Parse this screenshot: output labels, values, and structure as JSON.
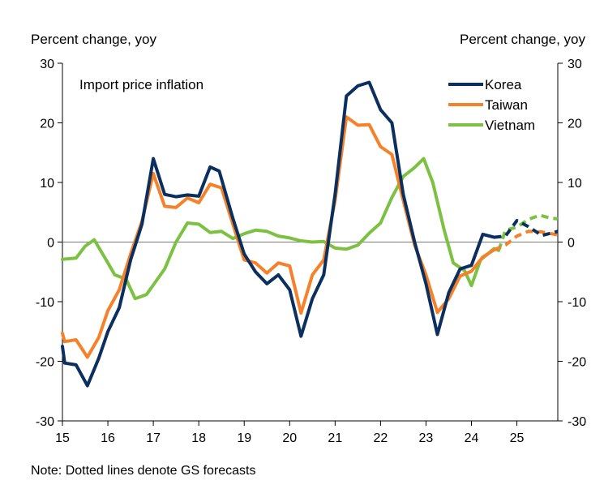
{
  "chart_data": {
    "type": "line",
    "title": "Import price inflation",
    "ylabel_left": "Percent change, yoy",
    "ylabel_right": "Percent change, yoy",
    "note": "Note: Dotted lines denote GS forecasts",
    "x_ticks": [
      "15",
      "16",
      "17",
      "18",
      "19",
      "20",
      "21",
      "22",
      "23",
      "24",
      "25"
    ],
    "y_ticks": [
      30,
      20,
      10,
      0,
      -10,
      -20,
      -30
    ],
    "ylim": [
      -30,
      30
    ],
    "xlim": [
      2015.0,
      2025.9
    ],
    "legend_position": "top-right",
    "grid": false,
    "colors": {
      "Korea": "#0b2f5e",
      "Taiwan": "#f5822a",
      "Vietnam": "#7cc142"
    },
    "series": [
      {
        "name": "Korea",
        "points": [
          [
            2015.0,
            -17.5
          ],
          [
            2015.05,
            -20.3
          ],
          [
            2015.3,
            -20.6
          ],
          [
            2015.55,
            -24.1
          ],
          [
            2015.8,
            -19.5
          ],
          [
            2016.0,
            -15.0
          ],
          [
            2016.25,
            -11.0
          ],
          [
            2016.5,
            -3.0
          ],
          [
            2016.75,
            3.0
          ],
          [
            2017.0,
            14.0
          ],
          [
            2017.25,
            8.0
          ],
          [
            2017.5,
            7.6
          ],
          [
            2017.75,
            7.9
          ],
          [
            2018.0,
            7.7
          ],
          [
            2018.25,
            12.6
          ],
          [
            2018.45,
            11.9
          ],
          [
            2018.75,
            4.0
          ],
          [
            2019.0,
            -2.0
          ],
          [
            2019.25,
            -5.0
          ],
          [
            2019.5,
            -7.0
          ],
          [
            2019.75,
            -5.5
          ],
          [
            2020.0,
            -8.0
          ],
          [
            2020.25,
            -15.8
          ],
          [
            2020.5,
            -9.5
          ],
          [
            2020.75,
            -5.5
          ],
          [
            2021.0,
            8.0
          ],
          [
            2021.25,
            24.5
          ],
          [
            2021.5,
            26.2
          ],
          [
            2021.75,
            26.8
          ],
          [
            2022.0,
            22.2
          ],
          [
            2022.25,
            20.0
          ],
          [
            2022.5,
            8.0
          ],
          [
            2022.75,
            0.0
          ],
          [
            2023.0,
            -7.0
          ],
          [
            2023.25,
            -15.5
          ],
          [
            2023.5,
            -8.5
          ],
          [
            2023.75,
            -4.5
          ],
          [
            2024.0,
            -3.9
          ],
          [
            2024.25,
            1.3
          ],
          [
            2024.5,
            0.8
          ]
        ],
        "forecast": [
          [
            2024.5,
            0.8
          ],
          [
            2024.75,
            1.0
          ],
          [
            2025.0,
            3.6
          ],
          [
            2025.25,
            2.6
          ],
          [
            2025.55,
            1.1
          ],
          [
            2025.9,
            1.8
          ]
        ]
      },
      {
        "name": "Taiwan",
        "points": [
          [
            2015.0,
            -15.3
          ],
          [
            2015.05,
            -16.7
          ],
          [
            2015.3,
            -16.4
          ],
          [
            2015.55,
            -19.3
          ],
          [
            2015.8,
            -16.0
          ],
          [
            2016.0,
            -11.5
          ],
          [
            2016.25,
            -8.0
          ],
          [
            2016.5,
            -2.0
          ],
          [
            2016.75,
            3.5
          ],
          [
            2017.0,
            11.5
          ],
          [
            2017.25,
            6.0
          ],
          [
            2017.5,
            5.8
          ],
          [
            2017.75,
            7.4
          ],
          [
            2018.0,
            6.6
          ],
          [
            2018.25,
            9.7
          ],
          [
            2018.5,
            9.1
          ],
          [
            2018.75,
            3.0
          ],
          [
            2019.0,
            -3.0
          ],
          [
            2019.25,
            -3.5
          ],
          [
            2019.5,
            -5.2
          ],
          [
            2019.75,
            -3.5
          ],
          [
            2020.0,
            -4.0
          ],
          [
            2020.25,
            -11.9
          ],
          [
            2020.5,
            -5.5
          ],
          [
            2020.75,
            -3.0
          ],
          [
            2021.0,
            7.0
          ],
          [
            2021.25,
            21.0
          ],
          [
            2021.5,
            19.6
          ],
          [
            2021.75,
            19.7
          ],
          [
            2022.0,
            16.0
          ],
          [
            2022.25,
            14.7
          ],
          [
            2022.5,
            7.0
          ],
          [
            2022.75,
            -0.5
          ],
          [
            2023.0,
            -5.5
          ],
          [
            2023.25,
            -11.8
          ],
          [
            2023.5,
            -9.5
          ],
          [
            2023.75,
            -5.7
          ],
          [
            2024.0,
            -4.9
          ],
          [
            2024.25,
            -2.5
          ],
          [
            2024.5,
            -1.3
          ]
        ],
        "forecast": [
          [
            2024.5,
            -1.3
          ],
          [
            2024.75,
            -0.5
          ],
          [
            2025.0,
            1.0
          ],
          [
            2025.25,
            1.8
          ],
          [
            2025.55,
            1.7
          ],
          [
            2025.9,
            1.2
          ]
        ]
      },
      {
        "name": "Vietnam",
        "points": [
          [
            2015.0,
            -2.9
          ],
          [
            2015.3,
            -2.7
          ],
          [
            2015.5,
            -0.7
          ],
          [
            2015.7,
            0.4
          ],
          [
            2016.0,
            -3.5
          ],
          [
            2016.15,
            -5.5
          ],
          [
            2016.4,
            -6.2
          ],
          [
            2016.6,
            -9.5
          ],
          [
            2016.85,
            -8.8
          ],
          [
            2017.0,
            -7.2
          ],
          [
            2017.25,
            -4.5
          ],
          [
            2017.5,
            0.0
          ],
          [
            2017.75,
            3.2
          ],
          [
            2018.0,
            3.0
          ],
          [
            2018.25,
            1.6
          ],
          [
            2018.5,
            1.8
          ],
          [
            2018.75,
            0.6
          ],
          [
            2019.0,
            1.4
          ],
          [
            2019.25,
            2.0
          ],
          [
            2019.5,
            1.8
          ],
          [
            2019.75,
            1.0
          ],
          [
            2020.0,
            0.7
          ],
          [
            2020.25,
            0.2
          ],
          [
            2020.5,
            0.0
          ],
          [
            2020.75,
            0.1
          ],
          [
            2021.0,
            -1.0
          ],
          [
            2021.25,
            -1.2
          ],
          [
            2021.5,
            -0.5
          ],
          [
            2021.75,
            1.5
          ],
          [
            2022.0,
            3.2
          ],
          [
            2022.25,
            7.5
          ],
          [
            2022.5,
            11.0
          ],
          [
            2022.75,
            12.5
          ],
          [
            2022.95,
            14.0
          ],
          [
            2023.15,
            10.0
          ],
          [
            2023.4,
            2.0
          ],
          [
            2023.6,
            -3.5
          ],
          [
            2023.85,
            -4.8
          ],
          [
            2024.0,
            -7.3
          ],
          [
            2024.2,
            -3.0
          ],
          [
            2024.5,
            -1.1
          ],
          [
            2024.6,
            -1.4
          ]
        ],
        "forecast": [
          [
            2024.6,
            -1.4
          ],
          [
            2024.75,
            2.0
          ],
          [
            2025.0,
            2.5
          ],
          [
            2025.25,
            3.8
          ],
          [
            2025.5,
            4.5
          ],
          [
            2025.75,
            4.0
          ],
          [
            2025.9,
            3.9
          ]
        ]
      }
    ]
  }
}
